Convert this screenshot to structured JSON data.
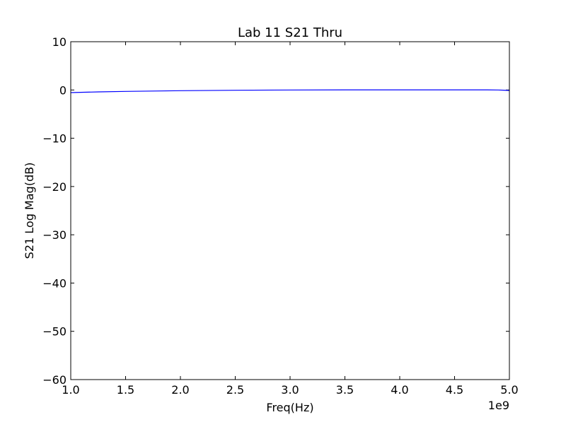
{
  "chart_data": {
    "type": "line",
    "title": "Lab 11 S21 Thru",
    "xlabel": "Freq(Hz)",
    "ylabel": "S21 Log Mag(dB)",
    "x_offset_label": "1e9",
    "xlim": [
      1.0,
      5.0
    ],
    "ylim": [
      -60,
      10
    ],
    "x_ticks": [
      1.0,
      1.5,
      2.0,
      2.5,
      3.0,
      3.5,
      4.0,
      4.5,
      5.0
    ],
    "x_tick_labels": [
      "1.0",
      "1.5",
      "2.0",
      "2.5",
      "3.0",
      "3.5",
      "4.0",
      "4.5",
      "5.0"
    ],
    "y_ticks": [
      10,
      0,
      -10,
      -20,
      -30,
      -40,
      -50,
      -60
    ],
    "y_tick_labels": [
      "10",
      "0",
      "−10",
      "−20",
      "−30",
      "−40",
      "−50",
      "−60"
    ],
    "grid": false,
    "line_color": "#0000ff",
    "series": [
      {
        "x": [
          1.0,
          1.25,
          1.5,
          1.75,
          2.0,
          2.5,
          3.0,
          3.5,
          4.0,
          4.5,
          4.8,
          4.9,
          4.95,
          5.0
        ],
        "values": [
          -0.55,
          -0.4,
          -0.3,
          -0.22,
          -0.15,
          -0.06,
          0.0,
          0.02,
          0.03,
          0.03,
          0.02,
          0.0,
          -0.05,
          -0.1
        ]
      }
    ]
  }
}
